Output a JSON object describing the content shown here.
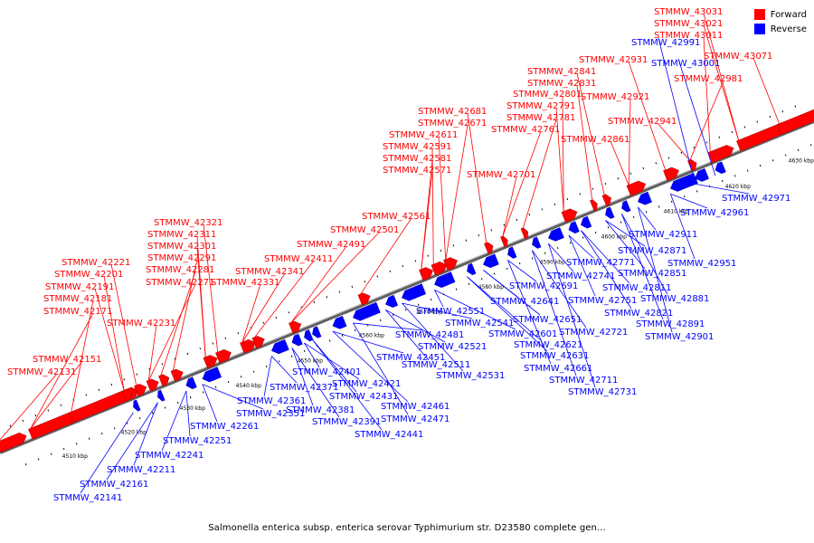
{
  "legend": [
    {
      "label": "Forward",
      "color": "#ff0000"
    },
    {
      "label": "Reverse",
      "color": "#0000ff"
    }
  ],
  "caption": "Salmonella enterica subsp. enterica serovar Typhimurium str. D23580 complete gen...",
  "axis": {
    "ticks": [
      "4510 kbp",
      "4520 kbp",
      "4530 kbp",
      "4540 kbp",
      "4550 kbp",
      "4560 kbp",
      "4570 kbp",
      "4580 kbp",
      "4590 kbp",
      "4600 kbp",
      "4610 kbp",
      "4620 kbp",
      "4630 kbp"
    ]
  },
  "forward_labels": [
    "STMMW_42131",
    "STMMW_42151",
    "STMMW_42171",
    "STMMW_42181",
    "STMMW_42191",
    "STMMW_42201",
    "STMMW_42221",
    "STMMW_42231",
    "STMMW_42271",
    "STMMW_42281",
    "STMMW_42291",
    "STMMW_42301",
    "STMMW_42311",
    "STMMW_42321",
    "STMMW_42331",
    "STMMW_42341",
    "STMMW_42411",
    "STMMW_42491",
    "STMMW_42501",
    "STMMW_42561",
    "STMMW_42571",
    "STMMW_42581",
    "STMMW_42591",
    "STMMW_42611",
    "STMMW_42671",
    "STMMW_42681",
    "STMMW_42701",
    "STMMW_42761",
    "STMMW_42781",
    "STMMW_42791",
    "STMMW_42801",
    "STMMW_42831",
    "STMMW_42841",
    "STMMW_42861",
    "STMMW_42921",
    "STMMW_42931",
    "STMMW_42941",
    "STMMW_42981",
    "STMMW_43011",
    "STMMW_43021",
    "STMMW_43031",
    "STMMW_43071"
  ],
  "reverse_labels": [
    "STMMW_42141",
    "STMMW_42161",
    "STMMW_42211",
    "STMMW_42241",
    "STMMW_42251",
    "STMMW_42261",
    "STMMW_42351",
    "STMMW_42361",
    "STMMW_42371",
    "STMMW_42381",
    "STMMW_42391",
    "STMMW_42401",
    "STMMW_42421",
    "STMMW_42431",
    "STMMW_42441",
    "STMMW_42451",
    "STMMW_42461",
    "STMMW_42471",
    "STMMW_42481",
    "STMMW_42511",
    "STMMW_42521",
    "STMMW_42531",
    "STMMW_42541",
    "STMMW_42551",
    "STMMW_42601",
    "STMMW_42621",
    "STMMW_42631",
    "STMMW_42641",
    "STMMW_42651",
    "STMMW_42661",
    "STMMW_42691",
    "STMMW_42711",
    "STMMW_42721",
    "STMMW_42731",
    "STMMW_42741",
    "STMMW_42751",
    "STMMW_42771",
    "STMMW_42811",
    "STMMW_42821",
    "STMMW_42851",
    "STMMW_42871",
    "STMMW_42881",
    "STMMW_42891",
    "STMMW_42901",
    "STMMW_42911",
    "STMMW_42951",
    "STMMW_42961",
    "STMMW_42971",
    "STMMW_42991",
    "STMMW_43001"
  ]
}
